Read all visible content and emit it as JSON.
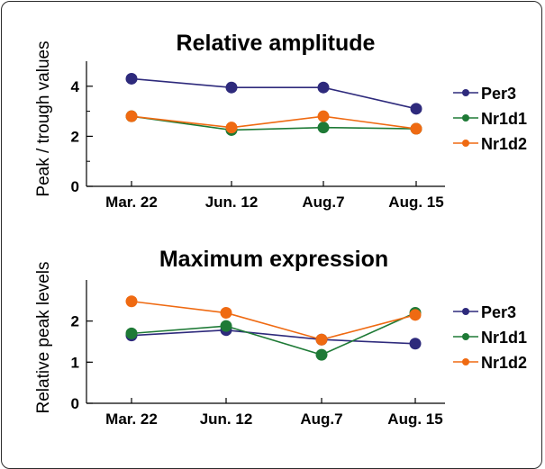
{
  "chart_data": [
    {
      "type": "line",
      "title": "Relative amplitude",
      "xlabel": "",
      "ylabel": "Peak / trough values",
      "categories": [
        "Mar. 22",
        "Jun. 12",
        "Aug.7",
        "Aug. 15"
      ],
      "ylim": [
        0,
        5
      ],
      "yticks": [
        0,
        2,
        4
      ],
      "grid": false,
      "legend_position": "right",
      "series": [
        {
          "name": "Per3",
          "color": "#2e2a7c",
          "values": [
            4.3,
            3.95,
            3.95,
            3.1
          ]
        },
        {
          "name": "Nr1d1",
          "color": "#1e7a36",
          "values": [
            2.8,
            2.25,
            2.35,
            2.3
          ]
        },
        {
          "name": "Nr1d2",
          "color": "#ef6a12",
          "values": [
            2.8,
            2.35,
            2.8,
            2.3
          ]
        }
      ]
    },
    {
      "type": "line",
      "title": "Maximum expression",
      "xlabel": "",
      "ylabel": "Relative peak levels",
      "categories": [
        "Mar. 22",
        "Jun. 12",
        "Aug.7",
        "Aug. 15"
      ],
      "ylim": [
        0,
        3
      ],
      "yticks": [
        0,
        1,
        2
      ],
      "grid": false,
      "legend_position": "right",
      "series": [
        {
          "name": "Per3",
          "color": "#2e2a7c",
          "values": [
            1.65,
            1.78,
            1.55,
            1.45
          ]
        },
        {
          "name": "Nr1d1",
          "color": "#1e7a36",
          "values": [
            1.7,
            1.88,
            1.18,
            2.2
          ]
        },
        {
          "name": "Nr1d2",
          "color": "#ef6a12",
          "values": [
            2.48,
            2.2,
            1.55,
            2.15
          ]
        }
      ]
    }
  ]
}
